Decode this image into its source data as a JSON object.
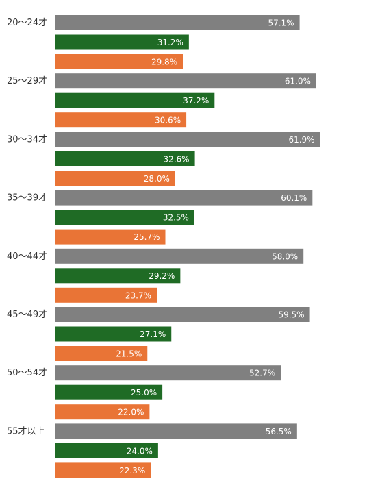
{
  "chart_data": {
    "type": "bar",
    "orientation": "horizontal",
    "categories": [
      "20〜24才",
      "25〜29才",
      "30〜34才",
      "35〜39才",
      "40〜44才",
      "45〜49才",
      "50〜54才",
      "55才以上"
    ],
    "series": [
      {
        "color": "#808080",
        "values": [
          57.1,
          61.0,
          61.9,
          60.1,
          58.0,
          59.5,
          52.7,
          56.5
        ]
      },
      {
        "color": "#1f6b25",
        "values": [
          31.2,
          37.2,
          32.6,
          32.5,
          29.2,
          27.1,
          25.0,
          24.0
        ]
      },
      {
        "color": "#e97436",
        "values": [
          29.8,
          30.6,
          28.0,
          25.7,
          23.7,
          21.5,
          22.0,
          22.3
        ]
      }
    ],
    "value_suffix": "%",
    "xlim": [
      0,
      70
    ],
    "grid": false,
    "legend": "none"
  }
}
